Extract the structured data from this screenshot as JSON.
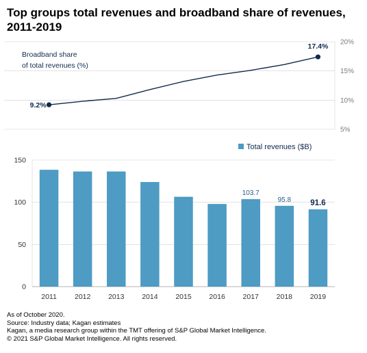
{
  "title": {
    "line1": "Top groups total revenues and broadband share of revenues,",
    "line2": "2011-2019"
  },
  "colors": {
    "bar": "#4e9bc4",
    "line": "#102a4c",
    "grid": "#d0d0d0",
    "axis_text": "#7a7a7a",
    "label_text": "#2a5f8a"
  },
  "chart_data": [
    {
      "type": "line",
      "series_label_line1": "Broadband share",
      "series_label_line2": "of total revenues (%)",
      "x": [
        "2011",
        "2012",
        "2013",
        "2014",
        "2015",
        "2016",
        "2017",
        "2018",
        "2019"
      ],
      "values": [
        9.2,
        9.8,
        10.3,
        11.8,
        13.2,
        14.3,
        15.1,
        16.1,
        17.4
      ],
      "ylim": [
        5,
        20
      ],
      "yticks": [
        "5%",
        "10%",
        "15%",
        "20%"
      ],
      "ytick_values": [
        5,
        10,
        15,
        20
      ],
      "y_axis_position": "right",
      "grid": true,
      "labels": {
        "first": "9.2%",
        "last": "17.4%"
      }
    },
    {
      "type": "bar",
      "legend": "Total revenues ($B)",
      "legend_position": "top-right",
      "categories": [
        "2011",
        "2012",
        "2013",
        "2014",
        "2015",
        "2016",
        "2017",
        "2018",
        "2019"
      ],
      "values": [
        138.5,
        136.5,
        136.5,
        124,
        106.5,
        98,
        103.7,
        95.8,
        91.6
      ],
      "ylim": [
        0,
        150
      ],
      "yticks": [
        "0",
        "50",
        "100",
        "150"
      ],
      "ytick_values": [
        0,
        50,
        100,
        150
      ],
      "y_axis_position": "left",
      "grid": true,
      "data_labels": {
        "6": "103.7",
        "7": "95.8",
        "8": "91.6"
      }
    }
  ],
  "notes": [
    "As of October 2020.",
    "Source: Industry data; Kagan estimates",
    "Kagan, a media research group within the TMT offering of S&P Global Market Intelligence.",
    "© 2021 S&P Global Market Intelligence. All rights reserved."
  ]
}
